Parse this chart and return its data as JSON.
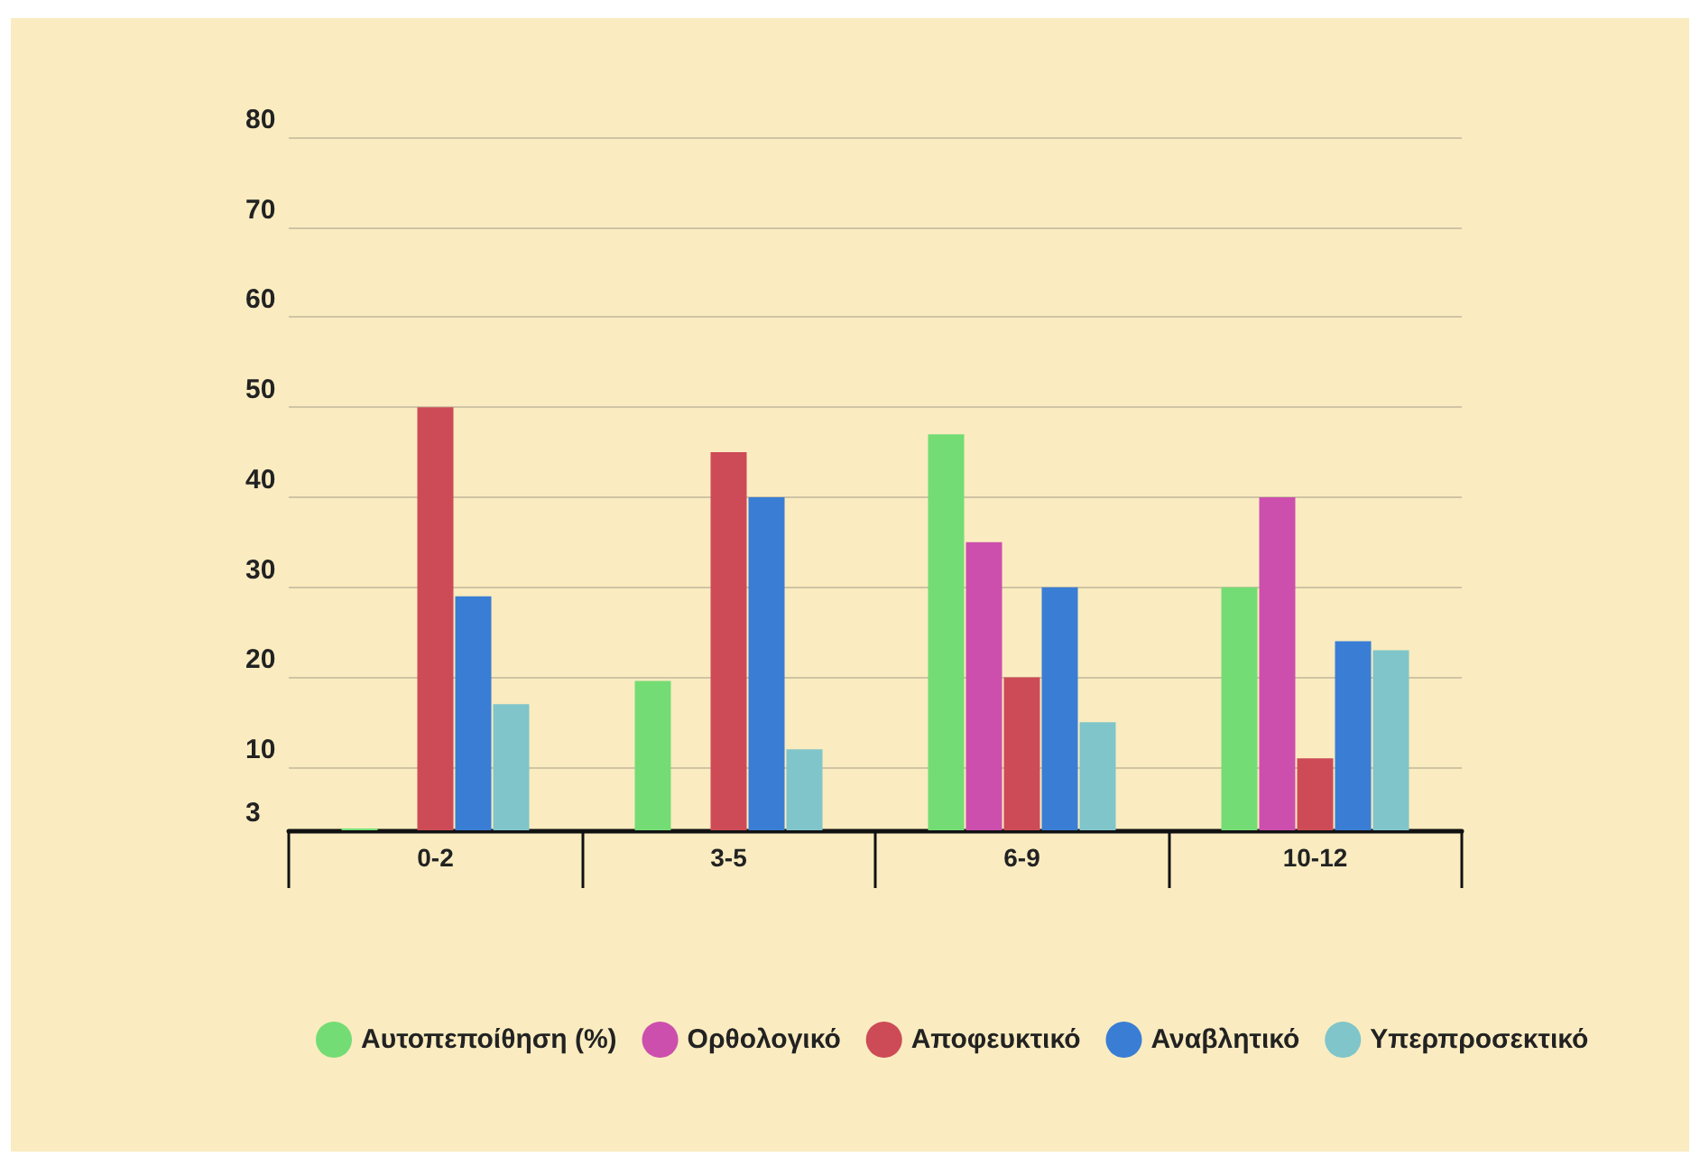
{
  "chart_data": {
    "type": "bar",
    "categories": [
      "0-2",
      "3-5",
      "6-9",
      "10-12"
    ],
    "series": [
      {
        "name": "Αυτοπεποίθηση (%)",
        "color": "#74dc74",
        "values": [
          3.2,
          19.6,
          47,
          30
        ]
      },
      {
        "name": "Ορθολογικό",
        "color": "#cc4fad",
        "values": [
          null,
          null,
          35,
          40
        ]
      },
      {
        "name": "Αποφευκτικό",
        "color": "#cd4b57",
        "values": [
          50,
          45,
          20,
          11
        ]
      },
      {
        "name": "Αναβλητικό",
        "color": "#3a7dd4",
        "values": [
          29,
          40,
          30,
          24
        ]
      },
      {
        "name": "Υπερπροσεκτικό",
        "color": "#7fc5ca",
        "values": [
          17,
          12,
          15,
          23
        ]
      }
    ],
    "ylim": [
      3,
      80
    ],
    "yticks": [
      3,
      10,
      20,
      30,
      40,
      50,
      60,
      70,
      80
    ],
    "grid": "y",
    "legend": "bottom"
  }
}
